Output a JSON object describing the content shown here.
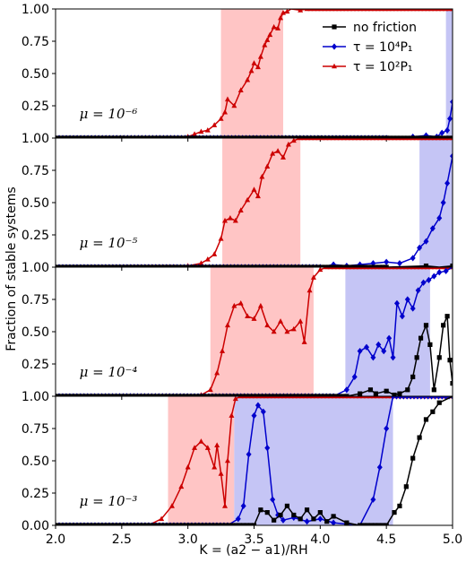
{
  "chart_data": {
    "type": "line",
    "xlabel": "K = (a2 − a1)/RH",
    "ylabel": "Fraction of stable systems",
    "xlim": [
      2.0,
      5.0
    ],
    "ylim": [
      0.0,
      1.0
    ],
    "x_ticks": [
      "2.0",
      "2.5",
      "3.0",
      "3.5",
      "4.0",
      "4.5",
      "5.0"
    ],
    "y_ticks": [
      "0.00",
      "0.25",
      "0.50",
      "0.75",
      "1.00"
    ],
    "legend": {
      "position": "top-right",
      "entries": [
        {
          "label": "no friction",
          "color": "#000000",
          "marker": "square"
        },
        {
          "label": "τ = 10⁴P₁",
          "color": "#0000cc",
          "marker": "diamond"
        },
        {
          "label": "τ = 10²P₁",
          "color": "#cc0000",
          "marker": "triangle"
        }
      ]
    },
    "series_styles": {
      "no_friction": {
        "color": "#000000",
        "marker": "square"
      },
      "tau4": {
        "color": "#0000cc",
        "marker": "diamond"
      },
      "tau2": {
        "color": "#cc0000",
        "marker": "triangle"
      }
    },
    "panels": [
      {
        "label": "μ = 10⁻⁶",
        "shaded": [
          {
            "from": 3.25,
            "to": 3.72,
            "color": "#ffc5c5"
          },
          {
            "from": 4.95,
            "to": 5.0,
            "color": "#c5c5f5"
          }
        ],
        "series": {
          "no_friction": [
            [
              2.0,
              0
            ],
            [
              2.5,
              0
            ],
            [
              3.0,
              0
            ],
            [
              3.5,
              0
            ],
            [
              4.0,
              0
            ],
            [
              4.5,
              0
            ],
            [
              4.9,
              0
            ],
            [
              5.0,
              0
            ]
          ],
          "tau4": [
            [
              2.0,
              0
            ],
            [
              4.5,
              0
            ],
            [
              4.7,
              0.01
            ],
            [
              4.8,
              0.02
            ],
            [
              4.88,
              0.01
            ],
            [
              4.92,
              0.04
            ],
            [
              4.96,
              0.06
            ],
            [
              4.98,
              0.15
            ],
            [
              5.0,
              0.28
            ]
          ],
          "tau2": [
            [
              2.0,
              0
            ],
            [
              2.9,
              0
            ],
            [
              3.0,
              0.01
            ],
            [
              3.05,
              0.03
            ],
            [
              3.1,
              0.05
            ],
            [
              3.15,
              0.06
            ],
            [
              3.2,
              0.1
            ],
            [
              3.25,
              0.15
            ],
            [
              3.28,
              0.2
            ],
            [
              3.3,
              0.3
            ],
            [
              3.35,
              0.25
            ],
            [
              3.4,
              0.37
            ],
            [
              3.45,
              0.45
            ],
            [
              3.48,
              0.52
            ],
            [
              3.5,
              0.58
            ],
            [
              3.53,
              0.55
            ],
            [
              3.55,
              0.63
            ],
            [
              3.58,
              0.72
            ],
            [
              3.6,
              0.76
            ],
            [
              3.62,
              0.8
            ],
            [
              3.65,
              0.86
            ],
            [
              3.68,
              0.85
            ],
            [
              3.7,
              0.93
            ],
            [
              3.72,
              0.97
            ],
            [
              3.75,
              0.98
            ],
            [
              3.78,
              1.0
            ],
            [
              3.85,
              0.99
            ],
            [
              3.9,
              1.0
            ],
            [
              5.0,
              1.0
            ]
          ]
        }
      },
      {
        "label": "μ = 10⁻⁵",
        "shaded": [
          {
            "from": 3.26,
            "to": 3.85,
            "color": "#ffc5c5"
          },
          {
            "from": 4.75,
            "to": 5.0,
            "color": "#c5c5f5"
          }
        ],
        "series": {
          "no_friction": [
            [
              2.0,
              0
            ],
            [
              4.5,
              0
            ],
            [
              4.8,
              0.01
            ],
            [
              4.9,
              0.0
            ],
            [
              5.0,
              0.01
            ]
          ],
          "tau4": [
            [
              2.0,
              0
            ],
            [
              4.0,
              0
            ],
            [
              4.1,
              0.02
            ],
            [
              4.2,
              0.01
            ],
            [
              4.3,
              0.02
            ],
            [
              4.4,
              0.03
            ],
            [
              4.5,
              0.04
            ],
            [
              4.6,
              0.03
            ],
            [
              4.7,
              0.07
            ],
            [
              4.75,
              0.15
            ],
            [
              4.8,
              0.2
            ],
            [
              4.85,
              0.3
            ],
            [
              4.9,
              0.38
            ],
            [
              4.93,
              0.5
            ],
            [
              4.96,
              0.65
            ],
            [
              5.0,
              0.86
            ]
          ],
          "tau2": [
            [
              2.0,
              0
            ],
            [
              2.9,
              0
            ],
            [
              3.0,
              0.01
            ],
            [
              3.1,
              0.03
            ],
            [
              3.15,
              0.06
            ],
            [
              3.2,
              0.1
            ],
            [
              3.25,
              0.22
            ],
            [
              3.28,
              0.36
            ],
            [
              3.32,
              0.38
            ],
            [
              3.36,
              0.36
            ],
            [
              3.4,
              0.44
            ],
            [
              3.45,
              0.52
            ],
            [
              3.5,
              0.6
            ],
            [
              3.53,
              0.55
            ],
            [
              3.56,
              0.7
            ],
            [
              3.6,
              0.78
            ],
            [
              3.64,
              0.88
            ],
            [
              3.68,
              0.9
            ],
            [
              3.72,
              0.85
            ],
            [
              3.76,
              0.95
            ],
            [
              3.8,
              0.98
            ],
            [
              3.85,
              1.0
            ],
            [
              5.0,
              1.0
            ]
          ]
        }
      },
      {
        "label": "μ = 10⁻⁴",
        "shaded": [
          {
            "from": 3.17,
            "to": 3.95,
            "color": "#ffc5c5"
          },
          {
            "from": 4.19,
            "to": 4.83,
            "color": "#c5c5f5"
          }
        ],
        "series": {
          "no_friction": [
            [
              2.0,
              0
            ],
            [
              4.2,
              0
            ],
            [
              4.3,
              0.02
            ],
            [
              4.38,
              0.05
            ],
            [
              4.42,
              0.02
            ],
            [
              4.5,
              0.04
            ],
            [
              4.56,
              0.01
            ],
            [
              4.6,
              0.02
            ],
            [
              4.66,
              0.05
            ],
            [
              4.7,
              0.15
            ],
            [
              4.73,
              0.3
            ],
            [
              4.76,
              0.45
            ],
            [
              4.8,
              0.55
            ],
            [
              4.83,
              0.4
            ],
            [
              4.86,
              0.05
            ],
            [
              4.9,
              0.3
            ],
            [
              4.93,
              0.55
            ],
            [
              4.96,
              0.62
            ],
            [
              4.98,
              0.28
            ],
            [
              5.0,
              0.1
            ]
          ],
          "tau4": [
            [
              2.0,
              0
            ],
            [
              4.1,
              0
            ],
            [
              4.2,
              0.05
            ],
            [
              4.26,
              0.15
            ],
            [
              4.3,
              0.35
            ],
            [
              4.35,
              0.38
            ],
            [
              4.4,
              0.3
            ],
            [
              4.44,
              0.4
            ],
            [
              4.48,
              0.35
            ],
            [
              4.52,
              0.45
            ],
            [
              4.55,
              0.3
            ],
            [
              4.58,
              0.72
            ],
            [
              4.62,
              0.62
            ],
            [
              4.66,
              0.75
            ],
            [
              4.7,
              0.68
            ],
            [
              4.74,
              0.82
            ],
            [
              4.78,
              0.88
            ],
            [
              4.82,
              0.9
            ],
            [
              4.86,
              0.93
            ],
            [
              4.9,
              0.96
            ],
            [
              4.95,
              0.97
            ],
            [
              5.0,
              1.0
            ]
          ],
          "tau2": [
            [
              2.0,
              0
            ],
            [
              3.0,
              0
            ],
            [
              3.1,
              0.01
            ],
            [
              3.17,
              0.05
            ],
            [
              3.22,
              0.18
            ],
            [
              3.26,
              0.35
            ],
            [
              3.3,
              0.55
            ],
            [
              3.35,
              0.7
            ],
            [
              3.4,
              0.72
            ],
            [
              3.45,
              0.62
            ],
            [
              3.5,
              0.6
            ],
            [
              3.55,
              0.7
            ],
            [
              3.6,
              0.55
            ],
            [
              3.65,
              0.5
            ],
            [
              3.7,
              0.58
            ],
            [
              3.75,
              0.5
            ],
            [
              3.8,
              0.52
            ],
            [
              3.85,
              0.58
            ],
            [
              3.88,
              0.42
            ],
            [
              3.92,
              0.82
            ],
            [
              3.95,
              0.92
            ],
            [
              4.0,
              0.98
            ],
            [
              4.05,
              1.0
            ],
            [
              5.0,
              1.0
            ]
          ]
        }
      },
      {
        "label": "μ = 10⁻³",
        "shaded": [
          {
            "from": 2.85,
            "to": 3.35,
            "color": "#ffc5c5"
          },
          {
            "from": 3.35,
            "to": 4.55,
            "color": "#c5c5f5"
          }
        ],
        "series": {
          "no_friction": [
            [
              2.0,
              0
            ],
            [
              3.5,
              0
            ],
            [
              3.55,
              0.12
            ],
            [
              3.6,
              0.1
            ],
            [
              3.65,
              0.04
            ],
            [
              3.7,
              0.08
            ],
            [
              3.75,
              0.15
            ],
            [
              3.8,
              0.08
            ],
            [
              3.85,
              0.05
            ],
            [
              3.9,
              0.12
            ],
            [
              3.95,
              0.05
            ],
            [
              4.0,
              0.1
            ],
            [
              4.05,
              0.03
            ],
            [
              4.1,
              0.07
            ],
            [
              4.2,
              0.02
            ],
            [
              4.3,
              0.0
            ],
            [
              4.5,
              0.0
            ],
            [
              4.56,
              0.1
            ],
            [
              4.6,
              0.15
            ],
            [
              4.65,
              0.3
            ],
            [
              4.7,
              0.52
            ],
            [
              4.75,
              0.68
            ],
            [
              4.8,
              0.82
            ],
            [
              4.85,
              0.88
            ],
            [
              4.9,
              0.95
            ],
            [
              5.0,
              1.0
            ]
          ],
          "tau4": [
            [
              2.0,
              0
            ],
            [
              3.3,
              0
            ],
            [
              3.38,
              0.05
            ],
            [
              3.42,
              0.15
            ],
            [
              3.46,
              0.55
            ],
            [
              3.5,
              0.85
            ],
            [
              3.53,
              0.93
            ],
            [
              3.57,
              0.88
            ],
            [
              3.6,
              0.6
            ],
            [
              3.64,
              0.2
            ],
            [
              3.68,
              0.08
            ],
            [
              3.72,
              0.04
            ],
            [
              3.8,
              0.06
            ],
            [
              3.9,
              0.03
            ],
            [
              4.0,
              0.05
            ],
            [
              4.1,
              0.02
            ],
            [
              4.2,
              0.01
            ],
            [
              4.3,
              0.0
            ],
            [
              4.4,
              0.2
            ],
            [
              4.45,
              0.45
            ],
            [
              4.5,
              0.75
            ],
            [
              4.55,
              1.0
            ],
            [
              5.0,
              1.0
            ]
          ],
          "tau2": [
            [
              2.0,
              0
            ],
            [
              2.7,
              0
            ],
            [
              2.8,
              0.05
            ],
            [
              2.88,
              0.15
            ],
            [
              2.95,
              0.3
            ],
            [
              3.0,
              0.45
            ],
            [
              3.05,
              0.6
            ],
            [
              3.1,
              0.65
            ],
            [
              3.15,
              0.6
            ],
            [
              3.2,
              0.45
            ],
            [
              3.22,
              0.62
            ],
            [
              3.25,
              0.4
            ],
            [
              3.28,
              0.15
            ],
            [
              3.3,
              0.5
            ],
            [
              3.33,
              0.85
            ],
            [
              3.36,
              0.98
            ],
            [
              3.4,
              1.0
            ],
            [
              5.0,
              1.0
            ]
          ]
        }
      }
    ]
  }
}
